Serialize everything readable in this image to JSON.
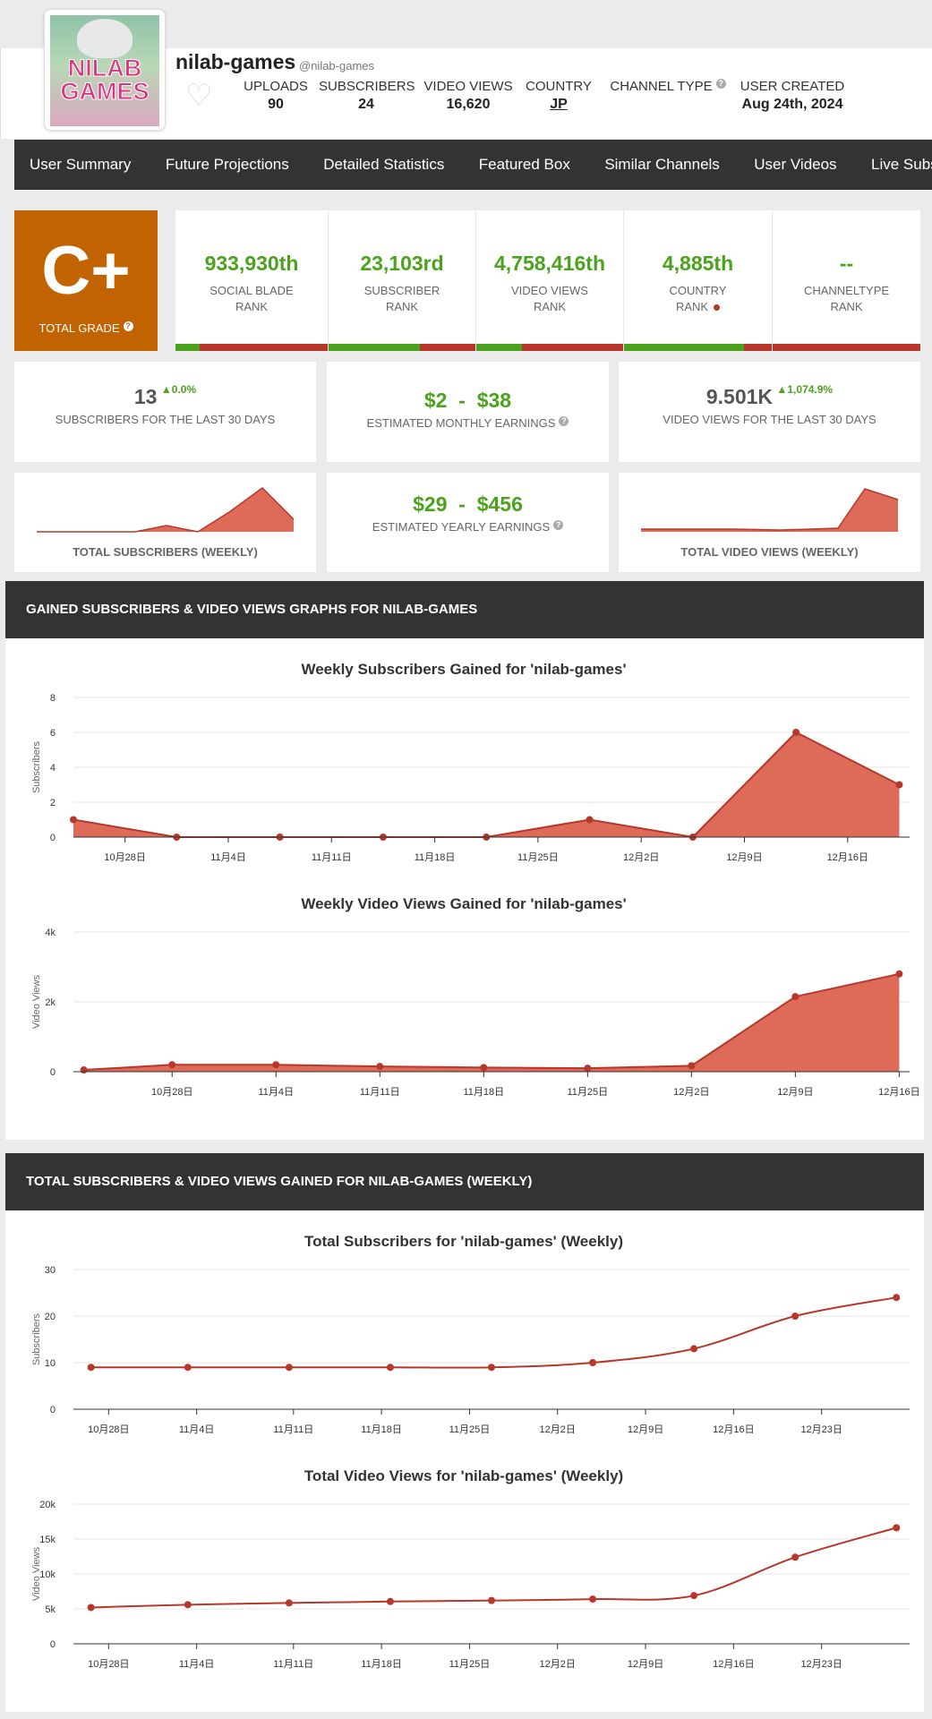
{
  "channel": {
    "name": "nilab-games",
    "handle": "@nilab-games",
    "avatar_text_1": "NILAB",
    "avatar_text_2": "GAMES",
    "stats": [
      {
        "label": "UPLOADS",
        "value": "90"
      },
      {
        "label": "SUBSCRIBERS",
        "value": "24"
      },
      {
        "label": "VIDEO VIEWS",
        "value": "16,620"
      },
      {
        "label": "COUNTRY",
        "value": "JP"
      },
      {
        "label": "CHANNEL TYPE",
        "value": ""
      },
      {
        "label": "USER CREATED",
        "value": "Aug 24th, 2024"
      }
    ]
  },
  "nav": [
    "User Summary",
    "Future Projections",
    "Detailed Statistics",
    "Featured Box",
    "Similar Channels",
    "User Videos",
    "Live Subscriber C"
  ],
  "grade": {
    "value": "C+",
    "label": "TOTAL GRADE"
  },
  "ranks": [
    {
      "value": "933,930th",
      "label1": "SOCIAL BLADE",
      "label2": "RANK",
      "bar_fraction": 0.16
    },
    {
      "value": "23,103rd",
      "label1": "SUBSCRIBER",
      "label2": "RANK",
      "bar_fraction": 0.62
    },
    {
      "value": "4,758,416th",
      "label1": "VIDEO VIEWS",
      "label2": "RANK",
      "bar_fraction": 0.31
    },
    {
      "value": "4,885th",
      "label1": "COUNTRY",
      "label2": "RANK",
      "bar_fraction": 0.81
    },
    {
      "value": "--",
      "label1": "CHANNELTYPE",
      "label2": "RANK",
      "bar_fraction": 0
    }
  ],
  "summary": {
    "subs30": {
      "value": "13",
      "change": "0.0%",
      "caption": "SUBSCRIBERS FOR THE LAST 30 DAYS"
    },
    "monthly": {
      "low": "$2",
      "high": "$38",
      "caption": "ESTIMATED MONTHLY EARNINGS"
    },
    "views30": {
      "value": "9.501K",
      "change": "1,074.9%",
      "caption": "VIDEO VIEWS FOR THE LAST 30 DAYS"
    },
    "total_subs_weekly": "TOTAL SUBSCRIBERS (WEEKLY)",
    "yearly": {
      "low": "$29",
      "high": "$456",
      "caption": "ESTIMATED YEARLY EARNINGS"
    },
    "total_views_weekly": "TOTAL VIDEO VIEWS (WEEKLY)",
    "dash": "-"
  },
  "sections": {
    "gained": "GAINED SUBSCRIBERS & VIDEO VIEWS GRAPHS FOR NILAB-GAMES",
    "total": "TOTAL SUBSCRIBERS & VIDEO VIEWS GAINED FOR NILAB-GAMES (WEEKLY)"
  },
  "colors": {
    "accent_green": "#4aa21d",
    "grade_orange": "#c06300",
    "chart_red": "#b7382b",
    "area_fill": "#dd6b58"
  },
  "chart_data": [
    {
      "id": "weekly-subs",
      "type": "area",
      "title": "Weekly Subscribers Gained for 'nilab-games'",
      "ylabel": "Subscribers",
      "ylim": [
        0,
        8
      ],
      "yticks": [
        0,
        2,
        4,
        6,
        8
      ],
      "ytick_labels": [
        "0",
        "2",
        "4",
        "6",
        "8"
      ],
      "x": [
        -0.5,
        0.5,
        1.5,
        2.5,
        3.5,
        4.5,
        5.5,
        6.5,
        7.5
      ],
      "values": [
        1,
        0,
        0,
        0,
        0,
        1,
        0,
        6,
        3
      ],
      "xticks": [
        0,
        1,
        2,
        3,
        4,
        5,
        6,
        7,
        8
      ],
      "xtick_labels": [
        "10月28日",
        "11月4日",
        "11月11日",
        "11月18日",
        "11月25日",
        "12月2日",
        "12月9日",
        "12月16日"
      ],
      "xlim": [
        -0.5,
        7.6
      ]
    },
    {
      "id": "weekly-views",
      "type": "area",
      "title": "Weekly Video Views Gained for 'nilab-games'",
      "ylabel": "Video Views",
      "ylim": [
        0,
        4000
      ],
      "yticks": [
        0,
        2000,
        4000
      ],
      "ytick_labels": [
        "0",
        "2k",
        "4k"
      ],
      "x": [
        -0.4,
        0.45,
        1.45,
        2.45,
        3.45,
        4.45,
        5.45,
        6.45,
        7.45
      ],
      "values": [
        50,
        200,
        200,
        150,
        120,
        100,
        170,
        2150,
        2800
      ],
      "xticks": [
        0.45,
        1.45,
        2.45,
        3.45,
        4.45,
        5.45,
        6.45,
        7.45
      ],
      "xtick_labels": [
        "10月28日",
        "11月4日",
        "11月11日",
        "11月18日",
        "11月25日",
        "12月2日",
        "12月9日",
        "12月16日"
      ],
      "xlim": [
        -0.5,
        7.55
      ]
    },
    {
      "id": "total-subs",
      "type": "line",
      "title": "Total Subscribers for 'nilab-games' (Weekly)",
      "ylabel": "Subscribers",
      "ylim": [
        0,
        30
      ],
      "yticks": [
        0,
        10,
        20,
        30
      ],
      "ytick_labels": [
        "0",
        "10",
        "20",
        "30"
      ],
      "x": [
        -0.1,
        1.0,
        2.15,
        3.3,
        4.45,
        5.6,
        6.75,
        7.9,
        9.05
      ],
      "values": [
        9,
        9,
        9,
        9,
        9,
        10,
        13,
        20,
        24
      ],
      "xticks": [
        0.1,
        1.1,
        2.2,
        3.2,
        4.2,
        5.2,
        6.2,
        7.2,
        8.2
      ],
      "xtick_labels": [
        "10月28日",
        "11月4日",
        "11月11日",
        "11月18日",
        "11月25日",
        "12月2日",
        "12月9日",
        "12月16日",
        "12月23日"
      ],
      "xlim": [
        -0.3,
        9.2
      ]
    },
    {
      "id": "total-views",
      "type": "line",
      "title": "Total Video Views for 'nilab-games' (Weekly)",
      "ylabel": "Video Views",
      "ylim": [
        0,
        20000
      ],
      "yticks": [
        0,
        5000,
        10000,
        15000,
        20000
      ],
      "ytick_labels": [
        "0",
        "5k",
        "10k",
        "15k",
        "20k"
      ],
      "x": [
        -0.1,
        1.0,
        2.15,
        3.3,
        4.45,
        5.6,
        6.75,
        7.9,
        9.05
      ],
      "values": [
        5200,
        5600,
        5850,
        6050,
        6200,
        6400,
        6900,
        12400,
        16620
      ],
      "xticks": [
        0.1,
        1.1,
        2.2,
        3.2,
        4.2,
        5.2,
        6.2,
        7.2,
        8.2
      ],
      "xtick_labels": [
        "10月28日",
        "11月4日",
        "11月11日",
        "11月18日",
        "11月25日",
        "12月2日",
        "12月9日",
        "12月16日",
        "12月23日"
      ],
      "xlim": [
        -0.3,
        9.2
      ]
    }
  ]
}
